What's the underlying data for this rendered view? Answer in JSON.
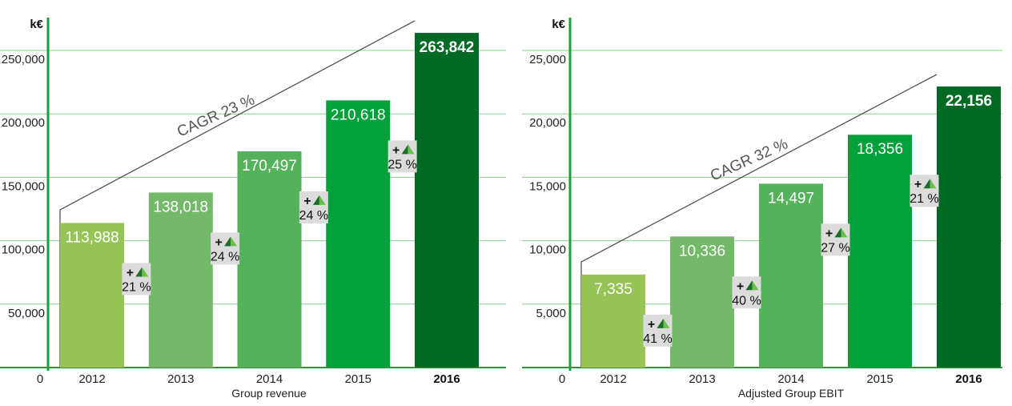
{
  "colors": {
    "grid": "#8ccf8c",
    "axis": "#1e9e3a",
    "badge_bg": "#dcdcdc",
    "triangle_dark": "#1b6b2a",
    "triangle_light": "#6cbf4a",
    "cagr_line": "#555555",
    "bars": [
      "#96c457",
      "#74b96a",
      "#54b35a",
      "#00a13a",
      "#006a25"
    ]
  },
  "chart_data": [
    {
      "type": "bar",
      "unit": "k€",
      "xlabel": "Group revenue",
      "categories": [
        "2012",
        "2013",
        "2014",
        "2015",
        "2016"
      ],
      "highlight_category": "2016",
      "values": [
        113988,
        138018,
        170497,
        210618,
        263842
      ],
      "value_labels": [
        "113,988",
        "138,018",
        "170,497",
        "210,618",
        "263,842"
      ],
      "ylim": [
        0,
        250000
      ],
      "yticks": [
        0,
        50000,
        100000,
        150000,
        200000,
        250000
      ],
      "ytick_labels": [
        "0",
        "50,000",
        "100,000",
        "150,000",
        "200,000",
        "250,000"
      ],
      "growth": [
        {
          "plus": "+",
          "value": "21 %"
        },
        {
          "plus": "+",
          "value": "24 %"
        },
        {
          "plus": "+",
          "value": "24 %"
        },
        {
          "plus": "+",
          "value": "25 %"
        }
      ],
      "cagr_label": "CAGR 23 %",
      "grid": true
    },
    {
      "type": "bar",
      "unit": "k€",
      "xlabel": "Adjusted Group EBIT",
      "categories": [
        "2012",
        "2013",
        "2014",
        "2015",
        "2016"
      ],
      "highlight_category": "2016",
      "values": [
        7335,
        10336,
        14497,
        18356,
        22156
      ],
      "value_labels": [
        "7,335",
        "10,336",
        "14,497",
        "18,356",
        "22,156"
      ],
      "ylim": [
        0,
        25000
      ],
      "yticks": [
        0,
        5000,
        10000,
        15000,
        20000,
        25000
      ],
      "ytick_labels": [
        "0",
        "5,000",
        "10,000",
        "15,000",
        "20,000",
        "25,000"
      ],
      "growth": [
        {
          "plus": "+",
          "value": "41 %"
        },
        {
          "plus": "+",
          "value": "40 %"
        },
        {
          "plus": "+",
          "value": "27 %"
        },
        {
          "plus": "+",
          "value": "21 %"
        }
      ],
      "cagr_label": "CAGR 32 %",
      "grid": true
    }
  ]
}
